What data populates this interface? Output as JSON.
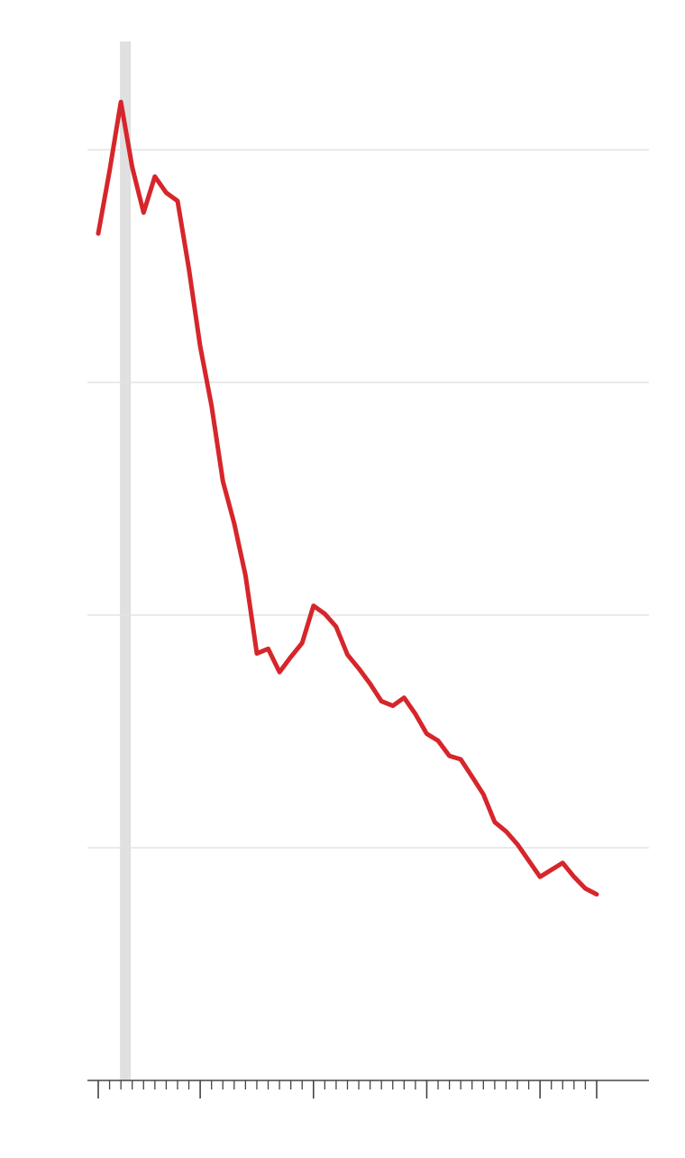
{
  "chart_data": {
    "type": "line",
    "title": "",
    "xlabel": "",
    "ylabel": "",
    "xlim": [
      0,
      44
    ],
    "ylim": [
      0,
      100
    ],
    "y_gridlines": [
      20,
      40,
      60,
      80
    ],
    "x_major_ticks": [
      0,
      9,
      19,
      29,
      39,
      44
    ],
    "x_minor_ticks": [
      1,
      2,
      3,
      4,
      5,
      6,
      7,
      8,
      10,
      11,
      12,
      13,
      14,
      15,
      16,
      17,
      18,
      20,
      21,
      22,
      23,
      24,
      25,
      26,
      27,
      28,
      30,
      31,
      32,
      33,
      34,
      35,
      36,
      37,
      38,
      40,
      41,
      42,
      43
    ],
    "shaded_band": {
      "from": 2,
      "to": 3
    },
    "grid": true,
    "legend": "none",
    "colors": {
      "line": "#d6262b",
      "band": "#e0e0e0",
      "grid": "#e3e3e3",
      "axis": "#444444"
    },
    "series": [
      {
        "x": [
          0,
          1,
          2,
          3,
          4,
          5,
          6,
          7,
          8,
          9,
          10,
          11,
          12,
          13,
          14,
          15,
          16,
          17,
          18,
          19,
          20,
          21,
          22,
          23,
          24,
          25,
          26,
          27,
          28,
          29,
          30,
          31,
          32,
          33,
          34,
          35,
          36,
          37,
          38,
          39,
          40,
          41,
          42,
          43,
          44
        ],
        "values": [
          72.8,
          78.2,
          84.1,
          78.5,
          74.6,
          77.7,
          76.3,
          75.6,
          69.8,
          63.1,
          58.0,
          51.5,
          47.9,
          43.4,
          36.7,
          37.1,
          35.1,
          36.4,
          37.6,
          40.8,
          40.1,
          39.0,
          36.6,
          35.4,
          34.1,
          32.6,
          32.2,
          32.9,
          31.5,
          29.8,
          29.2,
          27.9,
          27.6,
          26.1,
          24.6,
          22.2,
          21.4,
          20.3,
          18.9,
          17.5,
          18.1,
          18.7,
          17.5,
          16.5,
          16.0
        ]
      }
    ]
  }
}
